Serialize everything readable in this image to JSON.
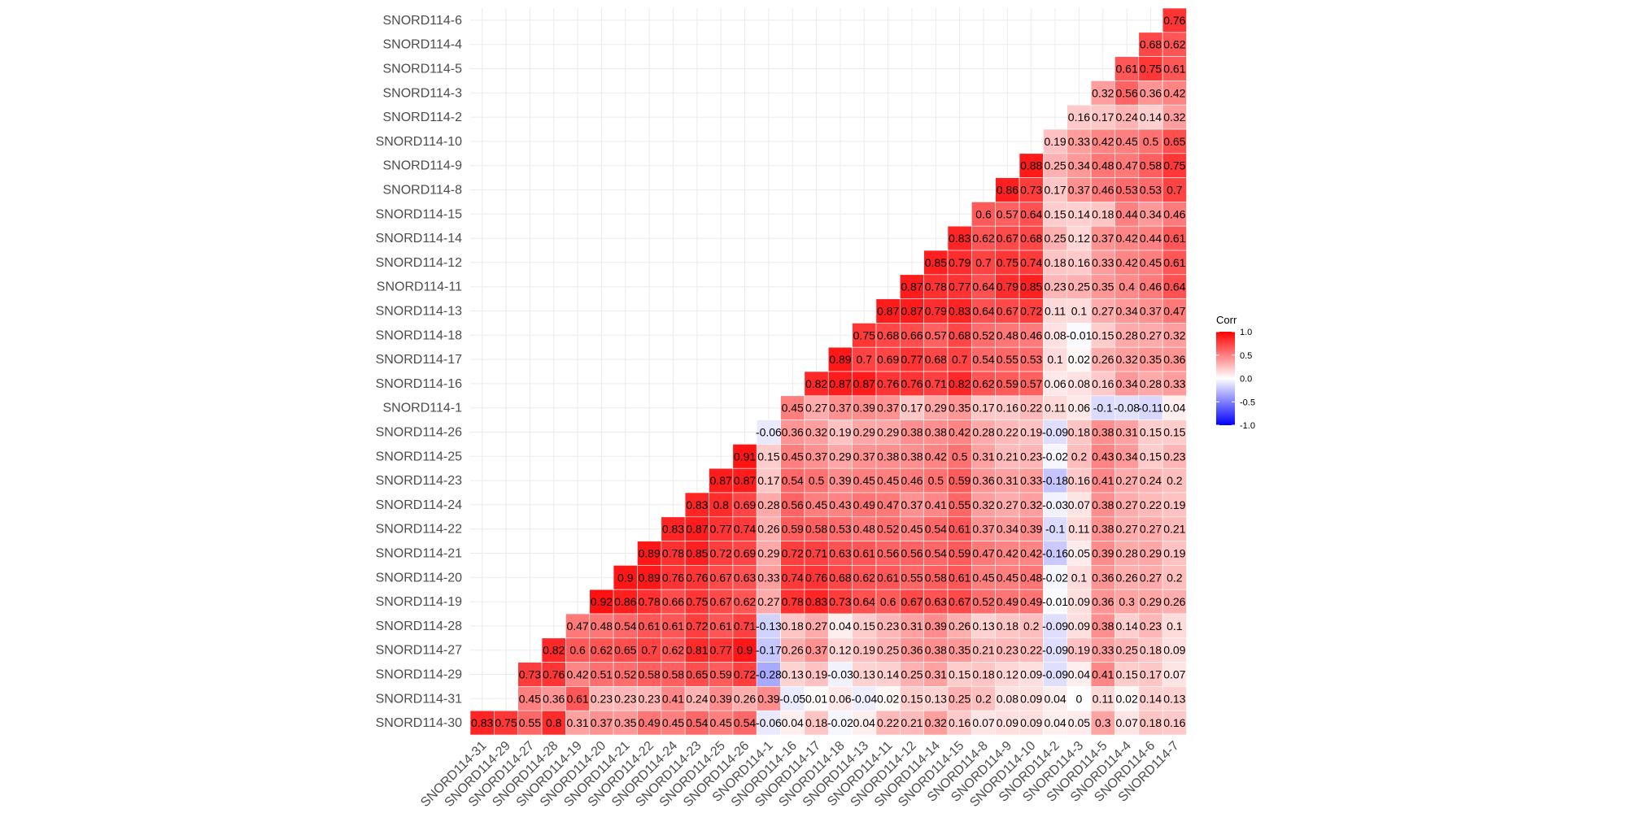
{
  "chart_data": {
    "type": "heatmap",
    "x_categories": [
      "SNORD114-31",
      "SNORD114-29",
      "SNORD114-27",
      "SNORD114-28",
      "SNORD114-19",
      "SNORD114-20",
      "SNORD114-21",
      "SNORD114-22",
      "SNORD114-24",
      "SNORD114-23",
      "SNORD114-25",
      "SNORD114-26",
      "SNORD114-1",
      "SNORD114-16",
      "SNORD114-17",
      "SNORD114-18",
      "SNORD114-13",
      "SNORD114-11",
      "SNORD114-12",
      "SNORD114-14",
      "SNORD114-15",
      "SNORD114-8",
      "SNORD114-9",
      "SNORD114-10",
      "SNORD114-2",
      "SNORD114-3",
      "SNORD114-5",
      "SNORD114-4",
      "SNORD114-6",
      "SNORD114-7"
    ],
    "y_categories_top_to_bottom": [
      "SNORD114-6",
      "SNORD114-4",
      "SNORD114-5",
      "SNORD114-3",
      "SNORD114-2",
      "SNORD114-10",
      "SNORD114-9",
      "SNORD114-8",
      "SNORD114-15",
      "SNORD114-14",
      "SNORD114-12",
      "SNORD114-11",
      "SNORD114-13",
      "SNORD114-18",
      "SNORD114-17",
      "SNORD114-16",
      "SNORD114-1",
      "SNORD114-26",
      "SNORD114-25",
      "SNORD114-23",
      "SNORD114-24",
      "SNORD114-22",
      "SNORD114-21",
      "SNORD114-20",
      "SNORD114-19",
      "SNORD114-28",
      "SNORD114-27",
      "SNORD114-29",
      "SNORD114-31",
      "SNORD114-30"
    ],
    "values": [
      [
        "0.76"
      ],
      [
        "0.68",
        "0.62"
      ],
      [
        "0.61",
        "0.75",
        "0.61"
      ],
      [
        "0.32",
        "0.56",
        "0.36",
        "0.42"
      ],
      [
        "0.16",
        "0.17",
        "0.24",
        "0.14",
        "0.32"
      ],
      [
        "0.19",
        "0.33",
        "0.42",
        "0.45",
        "0.5",
        "0.65"
      ],
      [
        "0.88",
        "0.25",
        "0.34",
        "0.48",
        "0.47",
        "0.58",
        "0.75"
      ],
      [
        "0.86",
        "0.73",
        "0.17",
        "0.37",
        "0.46",
        "0.53",
        "0.53",
        "0.7"
      ],
      [
        "0.6",
        "0.57",
        "0.64",
        "0.15",
        "0.14",
        "0.18",
        "0.44",
        "0.34",
        "0.46"
      ],
      [
        "0.83",
        "0.62",
        "0.67",
        "0.68",
        "0.25",
        "0.12",
        "0.37",
        "0.42",
        "0.44",
        "0.61"
      ],
      [
        "0.85",
        "0.79",
        "0.7",
        "0.75",
        "0.74",
        "0.18",
        "0.16",
        "0.33",
        "0.42",
        "0.45",
        "0.61"
      ],
      [
        "0.87",
        "0.78",
        "0.77",
        "0.64",
        "0.79",
        "0.85",
        "0.23",
        "0.25",
        "0.35",
        "0.4",
        "0.46",
        "0.64"
      ],
      [
        "0.87",
        "0.87",
        "0.79",
        "0.83",
        "0.64",
        "0.67",
        "0.72",
        "0.11",
        "0.1",
        "0.27",
        "0.34",
        "0.37",
        "0.47"
      ],
      [
        "0.75",
        "0.68",
        "0.66",
        "0.57",
        "0.68",
        "0.52",
        "0.48",
        "0.46",
        "0.08",
        "-0.01",
        "0.15",
        "0.28",
        "0.27",
        "0.32"
      ],
      [
        "0.89",
        "0.7",
        "0.69",
        "0.77",
        "0.68",
        "0.7",
        "0.54",
        "0.55",
        "0.53",
        "0.1",
        "0.02",
        "0.26",
        "0.32",
        "0.35",
        "0.36"
      ],
      [
        "0.82",
        "0.87",
        "0.87",
        "0.76",
        "0.76",
        "0.71",
        "0.82",
        "0.62",
        "0.59",
        "0.57",
        "0.06",
        "0.08",
        "0.16",
        "0.34",
        "0.28",
        "0.33"
      ],
      [
        "0.45",
        "0.27",
        "0.37",
        "0.39",
        "0.37",
        "0.17",
        "0.29",
        "0.35",
        "0.17",
        "0.16",
        "0.22",
        "0.11",
        "0.06",
        "-0.1",
        "-0.08",
        "-0.11",
        "0.04"
      ],
      [
        "-0.06",
        "0.36",
        "0.32",
        "0.19",
        "0.29",
        "0.29",
        "0.38",
        "0.38",
        "0.42",
        "0.28",
        "0.22",
        "0.19",
        "-0.09",
        "0.18",
        "0.38",
        "0.31",
        "0.15",
        "0.15"
      ],
      [
        "0.91",
        "0.15",
        "0.45",
        "0.37",
        "0.29",
        "0.37",
        "0.38",
        "0.38",
        "0.42",
        "0.5",
        "0.31",
        "0.21",
        "0.23",
        "-0.02",
        "0.2",
        "0.43",
        "0.34",
        "0.15",
        "0.23"
      ],
      [
        "0.87",
        "0.87",
        "0.17",
        "0.54",
        "0.5",
        "0.39",
        "0.45",
        "0.45",
        "0.46",
        "0.5",
        "0.59",
        "0.36",
        "0.31",
        "0.33",
        "-0.18",
        "0.16",
        "0.41",
        "0.27",
        "0.24",
        "0.2"
      ],
      [
        "0.83",
        "0.8",
        "0.69",
        "0.28",
        "0.56",
        "0.45",
        "0.43",
        "0.49",
        "0.47",
        "0.37",
        "0.41",
        "0.55",
        "0.32",
        "0.27",
        "0.32",
        "-0.03",
        "0.07",
        "0.38",
        "0.27",
        "0.22",
        "0.19"
      ],
      [
        "0.83",
        "0.87",
        "0.77",
        "0.74",
        "0.26",
        "0.59",
        "0.58",
        "0.53",
        "0.48",
        "0.52",
        "0.45",
        "0.54",
        "0.61",
        "0.37",
        "0.34",
        "0.39",
        "-0.1",
        "0.11",
        "0.38",
        "0.27",
        "0.27",
        "0.21"
      ],
      [
        "0.89",
        "0.78",
        "0.85",
        "0.72",
        "0.69",
        "0.29",
        "0.72",
        "0.71",
        "0.63",
        "0.61",
        "0.56",
        "0.56",
        "0.54",
        "0.59",
        "0.47",
        "0.42",
        "0.42",
        "-0.16",
        "0.05",
        "0.39",
        "0.28",
        "0.29",
        "0.19"
      ],
      [
        "0.9",
        "0.89",
        "0.76",
        "0.76",
        "0.67",
        "0.63",
        "0.33",
        "0.74",
        "0.76",
        "0.68",
        "0.62",
        "0.61",
        "0.55",
        "0.58",
        "0.61",
        "0.45",
        "0.45",
        "0.48",
        "-0.02",
        "0.1",
        "0.36",
        "0.26",
        "0.27",
        "0.2"
      ],
      [
        "0.92",
        "0.86",
        "0.78",
        "0.66",
        "0.75",
        "0.67",
        "0.62",
        "0.27",
        "0.78",
        "0.83",
        "0.73",
        "0.64",
        "0.6",
        "0.67",
        "0.63",
        "0.67",
        "0.52",
        "0.49",
        "0.49",
        "-0.01",
        "0.09",
        "0.36",
        "0.3",
        "0.29",
        "0.26"
      ],
      [
        "0.47",
        "0.48",
        "0.54",
        "0.61",
        "0.61",
        "0.72",
        "0.61",
        "0.71",
        "-0.13",
        "0.18",
        "0.27",
        "0.04",
        "0.15",
        "0.23",
        "0.31",
        "0.39",
        "0.26",
        "0.13",
        "0.18",
        "0.2",
        "-0.09",
        "0.09",
        "0.38",
        "0.14",
        "0.23",
        "0.1"
      ],
      [
        "0.82",
        "0.6",
        "0.62",
        "0.65",
        "0.7",
        "0.62",
        "0.81",
        "0.77",
        "0.9",
        "-0.17",
        "0.26",
        "0.37",
        "0.12",
        "0.19",
        "0.25",
        "0.36",
        "0.38",
        "0.35",
        "0.21",
        "0.23",
        "0.22",
        "-0.09",
        "0.19",
        "0.33",
        "0.25",
        "0.18",
        "0.09"
      ],
      [
        "0.73",
        "0.76",
        "0.42",
        "0.51",
        "0.52",
        "0.58",
        "0.58",
        "0.65",
        "0.59",
        "0.72",
        "-0.28",
        "0.13",
        "0.19",
        "-0.03",
        "0.13",
        "0.14",
        "0.25",
        "0.31",
        "0.15",
        "0.18",
        "0.12",
        "0.09",
        "-0.09",
        "0.04",
        "0.41",
        "0.15",
        "0.17",
        "0.07"
      ],
      [
        "0.45",
        "0.36",
        "0.61",
        "0.23",
        "0.23",
        "0.23",
        "0.41",
        "0.24",
        "0.39",
        "0.26",
        "0.39",
        "-0.05",
        "0.01",
        "0.06",
        "-0.04",
        "0.02",
        "0.15",
        "0.13",
        "0.25",
        "0.2",
        "0.08",
        "0.09",
        "0.04",
        "0",
        "0.11",
        "0.02",
        "0.14",
        "0.13"
      ],
      [
        "0.83",
        "0.75",
        "0.55",
        "0.8",
        "0.31",
        "0.37",
        "0.35",
        "0.49",
        "0.45",
        "0.54",
        "0.45",
        "0.54",
        "-0.06",
        "0.04",
        "0.18",
        "-0.02",
        "0.04",
        "0.22",
        "0.21",
        "0.32",
        "0.16",
        "0.07",
        "0.09",
        "0.09",
        "0.04",
        "0.05",
        "0.3",
        "0.07",
        "0.18",
        "0.16"
      ]
    ],
    "legend": {
      "title": "Corr",
      "ticks": [
        "1.0",
        "0.5",
        "0.0",
        "-0.5",
        "-1.0"
      ],
      "tick_values": [
        1,
        0.5,
        0,
        -0.5,
        -1
      ],
      "placement": "right"
    },
    "color_scale": {
      "low": "#0000ff",
      "mid": "#ffffff",
      "high": "#ff0000",
      "limits": [
        -1,
        1
      ]
    },
    "grid": true
  }
}
